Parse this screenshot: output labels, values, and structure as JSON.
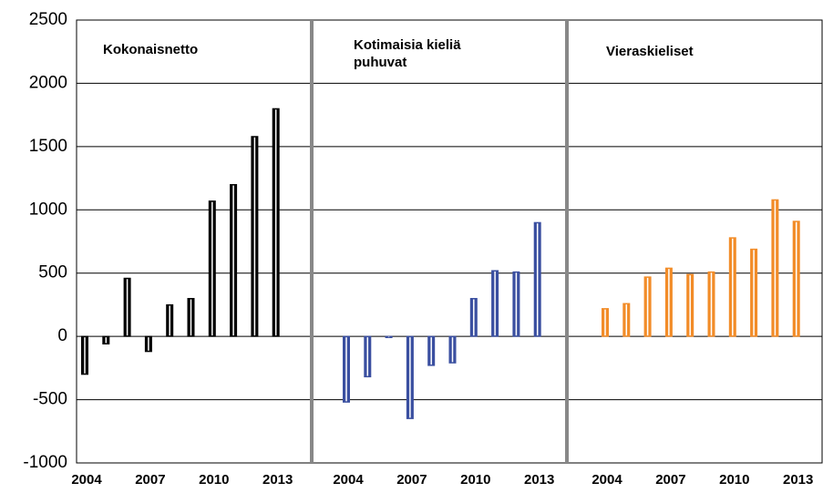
{
  "chart_data": {
    "type": "bar",
    "ylim": [
      -1000,
      2500
    ],
    "yticks": [
      -1000,
      -500,
      0,
      500,
      1000,
      1500,
      2000,
      2500
    ],
    "panels": [
      {
        "title": [
          "Kokonaisnetto"
        ],
        "color": "#000000",
        "categories": [
          "2004",
          null,
          null,
          "2007",
          null,
          null,
          "2010",
          null,
          null,
          "2013"
        ],
        "values": [
          -300,
          -60,
          460,
          -120,
          250,
          300,
          1070,
          1200,
          1580,
          1800
        ]
      },
      {
        "title": [
          "Kotimaisia kieliä",
          "puhuvat"
        ],
        "color": "#3a4fa0",
        "categories": [
          "2004",
          null,
          null,
          "2007",
          null,
          null,
          "2010",
          null,
          null,
          "2013"
        ],
        "values": [
          -520,
          -320,
          -10,
          -650,
          -230,
          -210,
          300,
          520,
          510,
          900
        ]
      },
      {
        "title": [
          "Vieraskieliset"
        ],
        "color": "#f28c28",
        "categories": [
          "2004",
          null,
          null,
          "2007",
          null,
          null,
          "2010",
          null,
          null,
          "2013"
        ],
        "values": [
          220,
          260,
          470,
          540,
          490,
          510,
          780,
          690,
          1080,
          910
        ]
      }
    ]
  }
}
